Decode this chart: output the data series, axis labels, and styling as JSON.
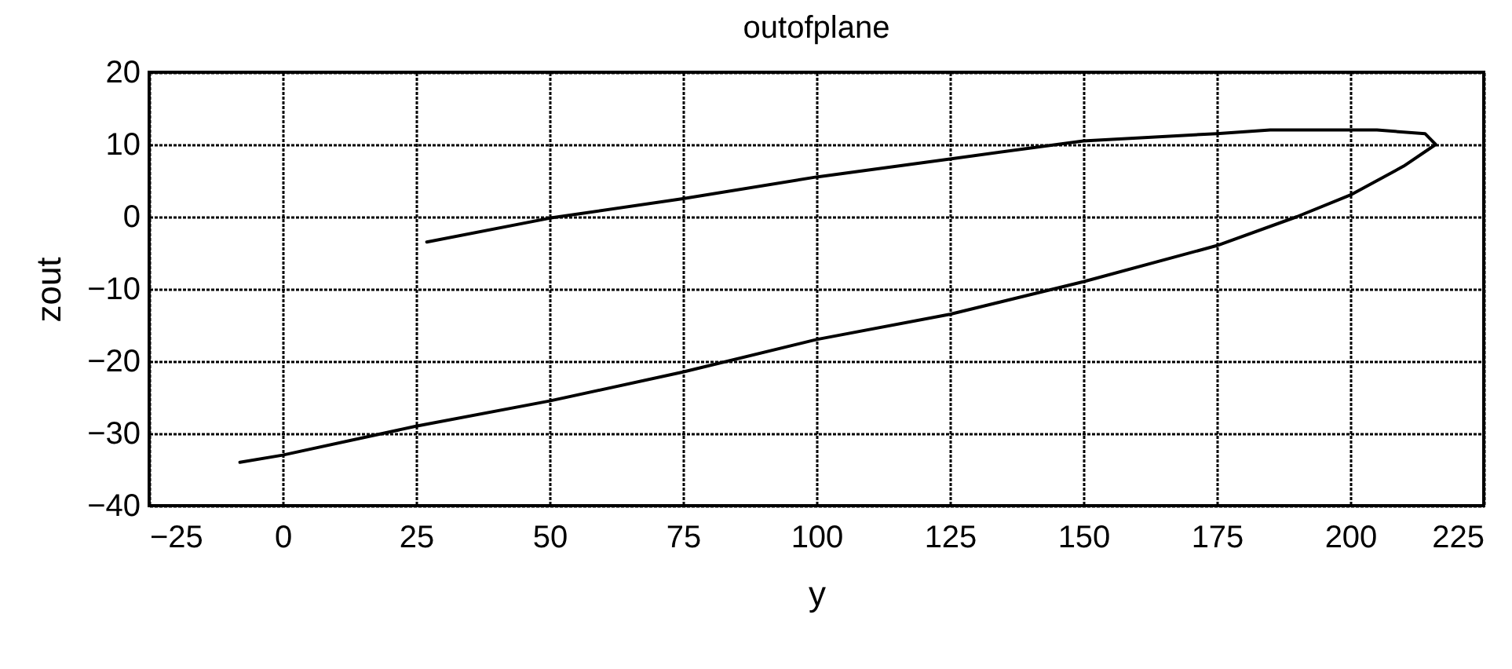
{
  "chart_data": {
    "type": "line",
    "title": "outofplane",
    "xlabel": "y",
    "ylabel": "zout",
    "xlim": [
      -25,
      225
    ],
    "xticks": [
      -25,
      0,
      25,
      50,
      75,
      100,
      125,
      150,
      175,
      200,
      225
    ],
    "ylim": [
      -40,
      20
    ],
    "yticks": [
      -40,
      -30,
      -20,
      -10,
      0,
      10,
      20
    ],
    "grid": true,
    "legend": false,
    "marker": "none",
    "line_style": "solid",
    "series": [
      {
        "color": "#000000",
        "x": [
          -8,
          0,
          25,
          50,
          75,
          100,
          125,
          150,
          175,
          190,
          200,
          210,
          216,
          214,
          205,
          185,
          175,
          150,
          125,
          100,
          75,
          50,
          27
        ],
        "values": [
          -34,
          -33,
          -29,
          -25.5,
          -21.5,
          -17,
          -13.5,
          -9,
          -4,
          0,
          3,
          7,
          10,
          11.5,
          12,
          12,
          11.5,
          10.5,
          8,
          5.5,
          2.5,
          -0.2,
          -3.5
        ]
      }
    ]
  }
}
